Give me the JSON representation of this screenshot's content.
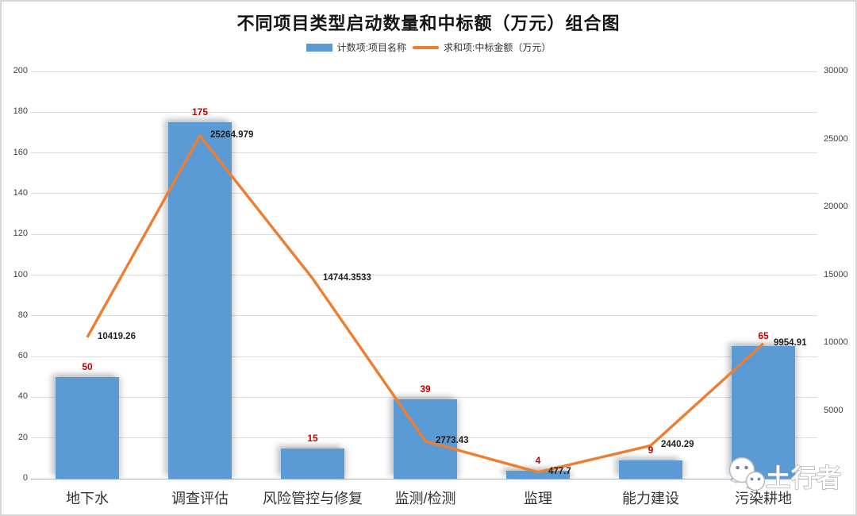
{
  "chart_data": {
    "type": "combo-bar-line",
    "title": "不同项目类型启动数量和中标额（万元）组合图",
    "legend_position": "top",
    "grid": true,
    "categories": [
      "地下水",
      "调查评估",
      "风险管控与修复",
      "监测/检测",
      "监理",
      "能力建设",
      "污染耕地"
    ],
    "series": [
      {
        "name": "计数项:项目名称",
        "type": "bar",
        "axis": "left",
        "color": "#5B9BD5",
        "label_color": "#C00000",
        "values": [
          50,
          175,
          15,
          39,
          4,
          9,
          65
        ],
        "labels": [
          "50",
          "175",
          "15",
          "39",
          "4",
          "9",
          "65"
        ]
      },
      {
        "name": "求和项:中标金额（万元）",
        "type": "line",
        "axis": "right",
        "color": "#ED7D31",
        "label_color": "#1f1f1f",
        "values": [
          10419.26,
          25264.979,
          14744.3533,
          2773.43,
          477.7,
          2440.29,
          9954.91
        ],
        "labels": [
          "10419.26",
          "25264.979",
          "14744.3533",
          "2773.43",
          "477.7",
          "2440.29",
          "9954.91"
        ]
      }
    ],
    "left_axis": {
      "min": 0,
      "max": 200,
      "step": 20,
      "ticks": [
        "0",
        "20",
        "40",
        "60",
        "80",
        "100",
        "120",
        "140",
        "160",
        "180",
        "200"
      ]
    },
    "right_axis": {
      "min": 0,
      "max": 30000,
      "step": 5000,
      "ticks": [
        "0",
        "5000",
        "10000",
        "15000",
        "20000",
        "25000",
        "30000"
      ]
    }
  },
  "watermark": {
    "text": "土行者",
    "icon": "wechat-icon"
  }
}
